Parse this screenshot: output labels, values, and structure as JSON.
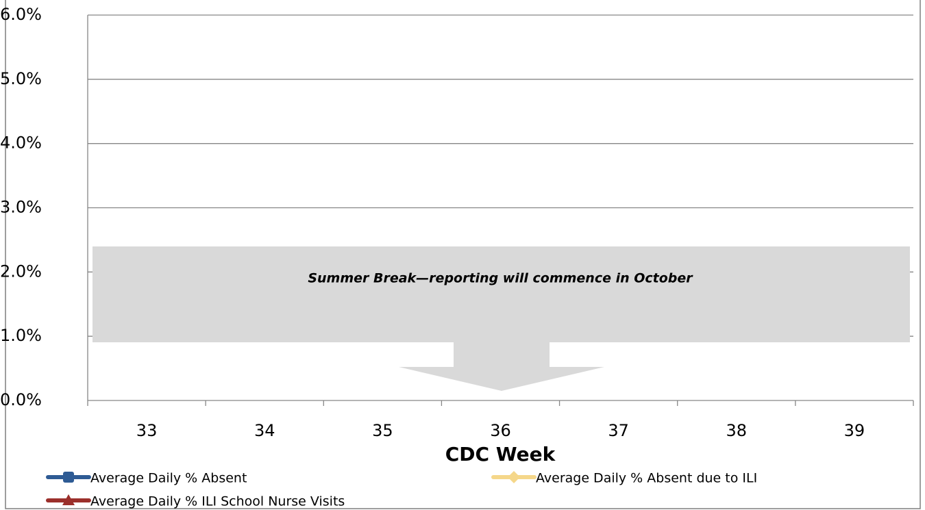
{
  "chart_data": {
    "type": "line",
    "x_label": "CDC Week",
    "categories": [
      "33",
      "34",
      "35",
      "36",
      "37",
      "38",
      "39"
    ],
    "series": [
      {
        "name": "Average Daily % Absent",
        "color": "#2e5b94",
        "marker": "square",
        "values": [
          null,
          null,
          null,
          null,
          null,
          null,
          null
        ]
      },
      {
        "name": "Average Daily % Absent due to ILI",
        "color": "#f5d78a",
        "marker": "diamond",
        "values": [
          null,
          null,
          null,
          null,
          null,
          null,
          null
        ]
      },
      {
        "name": "Average Daily % ILI School Nurse Visits",
        "color": "#9b2f2b",
        "marker": "triangle",
        "values": [
          null,
          null,
          null,
          null,
          null,
          null,
          null
        ]
      }
    ],
    "ylim": [
      0,
      6
    ],
    "yticks": [
      {
        "value": 0,
        "label": "0.0%"
      },
      {
        "value": 1,
        "label": "1.0%"
      },
      {
        "value": 2,
        "label": "2.0%"
      },
      {
        "value": 3,
        "label": "3.0%"
      },
      {
        "value": 4,
        "label": "4.0%"
      },
      {
        "value": 5,
        "label": "5.0%"
      },
      {
        "value": 6,
        "label": "6.0%"
      }
    ],
    "grid": true,
    "annotation": "Summer Break—reporting will commence in October"
  }
}
